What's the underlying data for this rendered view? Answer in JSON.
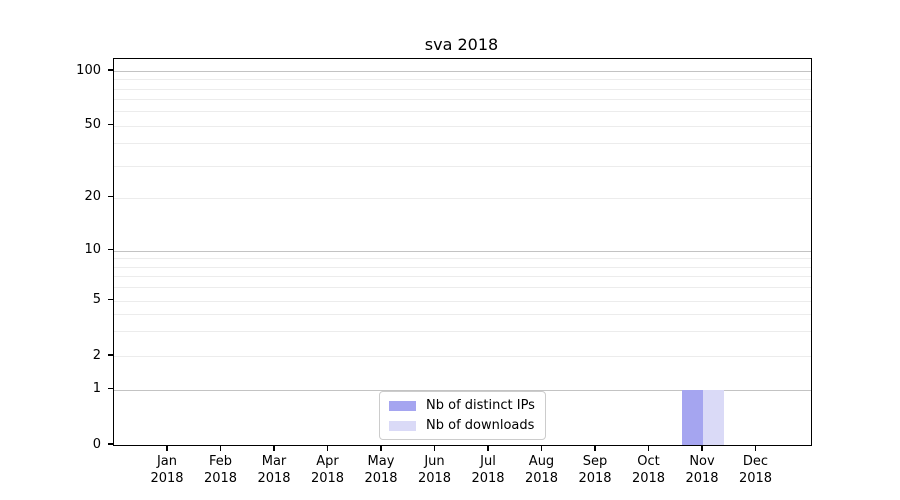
{
  "chart_data": {
    "type": "bar",
    "title": "sva 2018",
    "categories": [
      "Jan 2018",
      "Feb 2018",
      "Mar 2018",
      "Apr 2018",
      "May 2018",
      "Jun 2018",
      "Jul 2018",
      "Aug 2018",
      "Sep 2018",
      "Oct 2018",
      "Nov 2018",
      "Dec 2018"
    ],
    "series": [
      {
        "name": "Nb of distinct IPs",
        "color": "#a5a5f0",
        "values": [
          0,
          0,
          0,
          0,
          0,
          0,
          0,
          0,
          0,
          0,
          1,
          0
        ]
      },
      {
        "name": "Nb of downloads",
        "color": "#dadaf7",
        "values": [
          0,
          0,
          0,
          0,
          0,
          0,
          0,
          0,
          0,
          0,
          1,
          0
        ]
      }
    ],
    "xlabel": "",
    "ylabel": "",
    "yscale": "log above 1, linear 0-1",
    "ylim": [
      0,
      117
    ],
    "grid": "horizontal, major and minor",
    "legend_position": "lower center inside plot"
  },
  "axes": {
    "y_ticks": [
      {
        "label": "0",
        "value": 0
      },
      {
        "label": "1",
        "value": 1
      },
      {
        "label": "2",
        "value": 2
      },
      {
        "label": "5",
        "value": 5
      },
      {
        "label": "10",
        "value": 10
      },
      {
        "label": "20",
        "value": 20
      },
      {
        "label": "50",
        "value": 50
      },
      {
        "label": "100",
        "value": 100
      }
    ],
    "x_ticks": [
      {
        "month": "Jan",
        "year": "2018"
      },
      {
        "month": "Feb",
        "year": "2018"
      },
      {
        "month": "Mar",
        "year": "2018"
      },
      {
        "month": "Apr",
        "year": "2018"
      },
      {
        "month": "May",
        "year": "2018"
      },
      {
        "month": "Jun",
        "year": "2018"
      },
      {
        "month": "Jul",
        "year": "2018"
      },
      {
        "month": "Aug",
        "year": "2018"
      },
      {
        "month": "Sep",
        "year": "2018"
      },
      {
        "month": "Oct",
        "year": "2018"
      },
      {
        "month": "Nov",
        "year": "2018"
      },
      {
        "month": "Dec",
        "year": "2018"
      }
    ]
  },
  "colors": {
    "spine": "#000000",
    "major_grid": "#c3c3c3",
    "minor_grid": "#ececec",
    "background": "#ffffff",
    "legend_border": "#cccccc"
  }
}
